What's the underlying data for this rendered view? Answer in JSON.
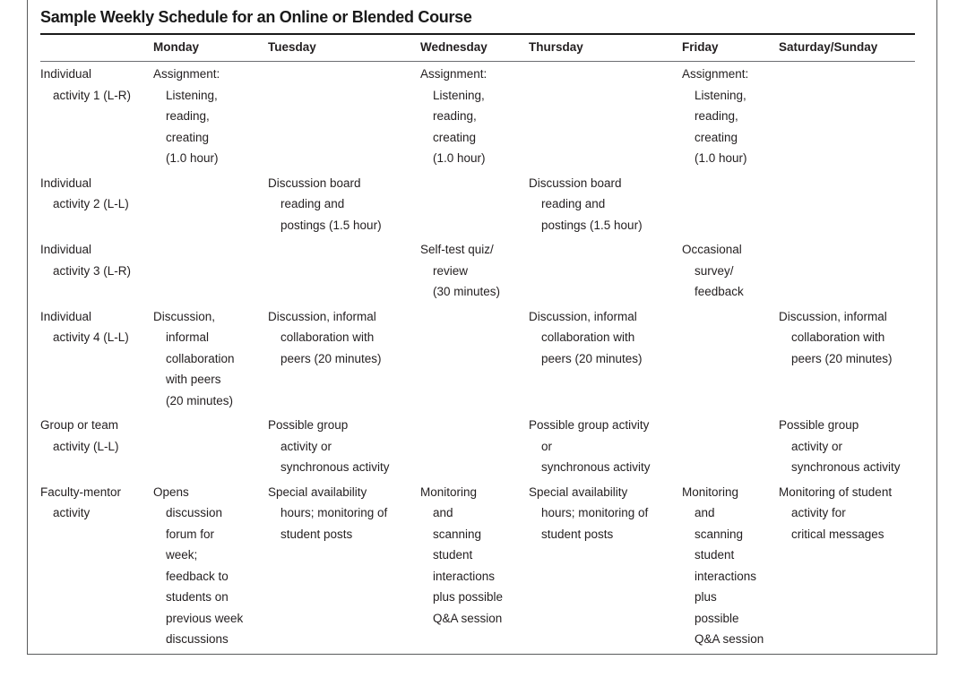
{
  "title": "Sample Weekly Schedule for an Online or Blended Course",
  "colors": {
    "text": "#231f20",
    "title_rule": "#1a1a1a",
    "hairline": "#6d6e71",
    "frame_border": "#595a5c",
    "background": "#ffffff"
  },
  "columns": [
    "",
    "Monday",
    "Tuesday",
    "Wednesday",
    "Thursday",
    "Friday",
    "Saturday/Sunday"
  ],
  "rows": [
    {
      "label": "Individual\nactivity 1 (L-R)",
      "cells": [
        "Assignment:\nListening,\nreading,\ncreating\n(1.0 hour)",
        "",
        "Assignment:\nListening,\nreading,\ncreating\n(1.0 hour)",
        "",
        "Assignment:\nListening,\nreading,\ncreating\n(1.0 hour)",
        ""
      ]
    },
    {
      "label": "Individual\nactivity 2 (L-L)",
      "cells": [
        "",
        "Discussion board\nreading and\npostings (1.5 hour)",
        "",
        "Discussion board\nreading and\npostings (1.5 hour)",
        "",
        ""
      ]
    },
    {
      "label": "Individual\nactivity 3 (L-R)",
      "cells": [
        "",
        "",
        "Self-test quiz/\nreview\n(30 minutes)",
        "",
        "Occasional\nsurvey/\nfeedback",
        ""
      ]
    },
    {
      "label": "Individual\nactivity 4 (L-L)",
      "cells": [
        "Discussion,\ninformal\ncollaboration\nwith peers\n(20 minutes)",
        "Discussion, informal\ncollaboration with\npeers (20 minutes)",
        "",
        "Discussion, informal\ncollaboration with\npeers (20 minutes)",
        "",
        "Discussion, informal\ncollaboration with\npeers (20 minutes)"
      ]
    },
    {
      "label": "Group or team\nactivity (L-L)",
      "cells": [
        "",
        "Possible group\nactivity or\nsynchronous activity",
        "",
        "Possible group activity\nor\nsynchronous activity",
        "",
        "Possible group\nactivity or\nsynchronous activity"
      ]
    },
    {
      "label": "Faculty-mentor\nactivity",
      "cells": [
        "Opens\ndiscussion\nforum for\nweek;\nfeedback to\nstudents on\nprevious week\ndiscussions",
        "Special availability\nhours; monitoring of\nstudent posts",
        "Monitoring\nand\nscanning\nstudent\ninteractions\nplus possible\nQ&A session",
        "Special availability\nhours; monitoring of\nstudent posts",
        "Monitoring\nand\nscanning\nstudent\ninteractions\nplus\npossible\nQ&A session",
        "Monitoring of student\nactivity for\ncritical messages"
      ]
    }
  ]
}
